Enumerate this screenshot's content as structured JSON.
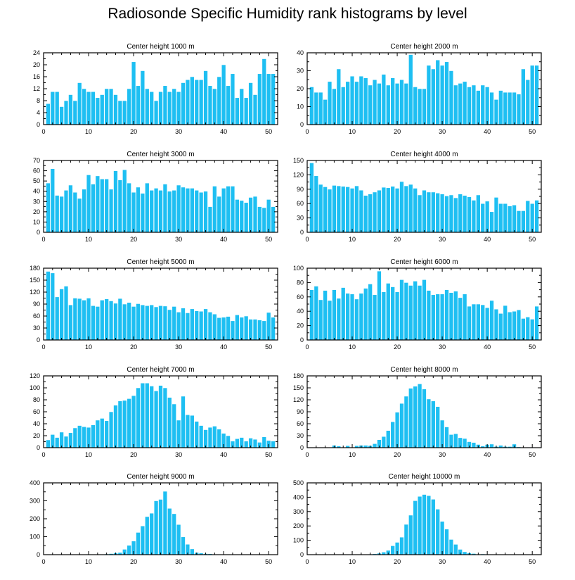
{
  "title": "Radiosonde Specific Humidity rank histograms by level",
  "colors": {
    "bar": "#1ebff2",
    "frame": "#000000"
  },
  "chart_data": [
    {
      "type": "bar",
      "title": "Center height 1000 m",
      "xlabel": "",
      "ylabel": "",
      "xlim": [
        0,
        52
      ],
      "xticks": [
        0,
        10,
        20,
        30,
        40,
        50
      ],
      "ylim": [
        0,
        24
      ],
      "yticks": [
        0,
        4,
        8,
        12,
        16,
        20,
        24
      ],
      "x": [
        1,
        2,
        3,
        4,
        5,
        6,
        7,
        8,
        9,
        10,
        11,
        12,
        13,
        14,
        15,
        16,
        17,
        18,
        19,
        20,
        21,
        22,
        23,
        24,
        25,
        26,
        27,
        28,
        29,
        30,
        31,
        32,
        33,
        34,
        35,
        36,
        37,
        38,
        39,
        40,
        41,
        42,
        43,
        44,
        45,
        46,
        47,
        48,
        49,
        50,
        51
      ],
      "values": [
        7,
        11,
        11,
        6,
        8,
        10,
        8,
        14,
        12,
        11,
        11,
        9,
        10,
        12,
        12,
        10,
        8,
        8,
        12,
        21,
        13,
        18,
        12,
        11,
        8,
        11,
        13,
        11,
        12,
        11,
        14,
        15,
        16,
        15,
        15,
        18,
        13,
        12,
        16,
        20,
        13,
        17,
        9,
        12,
        9,
        14,
        10,
        17,
        22,
        17,
        17
      ]
    },
    {
      "type": "bar",
      "title": "Center height 2000 m",
      "xlabel": "",
      "ylabel": "",
      "xlim": [
        0,
        52
      ],
      "xticks": [
        0,
        10,
        20,
        30,
        40,
        50
      ],
      "ylim": [
        0,
        40
      ],
      "yticks": [
        0,
        10,
        20,
        30,
        40
      ],
      "x": [
        1,
        2,
        3,
        4,
        5,
        6,
        7,
        8,
        9,
        10,
        11,
        12,
        13,
        14,
        15,
        16,
        17,
        18,
        19,
        20,
        21,
        22,
        23,
        24,
        25,
        26,
        27,
        28,
        29,
        30,
        31,
        32,
        33,
        34,
        35,
        36,
        37,
        38,
        39,
        40,
        41,
        42,
        43,
        44,
        45,
        46,
        47,
        48,
        49,
        50,
        51
      ],
      "values": [
        21,
        18,
        18,
        14,
        24,
        20,
        31,
        21,
        24,
        27,
        24,
        27,
        26,
        22,
        25,
        23,
        28,
        22,
        26,
        23,
        25,
        23,
        39,
        21,
        20,
        20,
        33,
        31,
        36,
        33,
        35,
        30,
        22,
        23,
        24,
        21,
        22,
        19,
        22,
        21,
        18,
        14,
        19,
        18,
        18,
        18,
        17,
        31,
        25,
        33,
        33
      ]
    },
    {
      "type": "bar",
      "title": "Center height 3000 m",
      "xlabel": "",
      "ylabel": "",
      "xlim": [
        0,
        52
      ],
      "xticks": [
        0,
        10,
        20,
        30,
        40,
        50
      ],
      "ylim": [
        0,
        70
      ],
      "yticks": [
        0,
        10,
        20,
        30,
        40,
        50,
        60,
        70
      ],
      "x": [
        1,
        2,
        3,
        4,
        5,
        6,
        7,
        8,
        9,
        10,
        11,
        12,
        13,
        14,
        15,
        16,
        17,
        18,
        19,
        20,
        21,
        22,
        23,
        24,
        25,
        26,
        27,
        28,
        29,
        30,
        31,
        32,
        33,
        34,
        35,
        36,
        37,
        38,
        39,
        40,
        41,
        42,
        43,
        44,
        45,
        46,
        47,
        48,
        49,
        50,
        51
      ],
      "values": [
        48,
        62,
        36,
        35,
        41,
        46,
        39,
        33,
        42,
        56,
        47,
        55,
        52,
        52,
        42,
        60,
        51,
        61,
        48,
        39,
        44,
        38,
        48,
        41,
        43,
        41,
        47,
        40,
        41,
        46,
        44,
        43,
        43,
        41,
        39,
        40,
        25,
        45,
        35,
        43,
        45,
        45,
        32,
        31,
        29,
        34,
        35,
        25,
        24,
        32,
        25
      ]
    },
    {
      "type": "bar",
      "title": "Center height 4000 m",
      "xlabel": "",
      "ylabel": "",
      "xlim": [
        0,
        52
      ],
      "xticks": [
        0,
        10,
        20,
        30,
        40,
        50
      ],
      "ylim": [
        0,
        150
      ],
      "yticks": [
        0,
        30,
        60,
        90,
        120,
        150
      ],
      "x": [
        1,
        2,
        3,
        4,
        5,
        6,
        7,
        8,
        9,
        10,
        11,
        12,
        13,
        14,
        15,
        16,
        17,
        18,
        19,
        20,
        21,
        22,
        23,
        24,
        25,
        26,
        27,
        28,
        29,
        30,
        31,
        32,
        33,
        34,
        35,
        36,
        37,
        38,
        39,
        40,
        41,
        42,
        43,
        44,
        45,
        46,
        47,
        48,
        49,
        50,
        51
      ],
      "values": [
        145,
        118,
        100,
        95,
        90,
        98,
        97,
        96,
        95,
        92,
        97,
        88,
        77,
        80,
        84,
        88,
        94,
        93,
        96,
        92,
        106,
        97,
        100,
        92,
        78,
        88,
        84,
        84,
        82,
        80,
        76,
        78,
        72,
        80,
        77,
        74,
        67,
        78,
        60,
        65,
        43,
        73,
        60,
        60,
        55,
        57,
        45,
        45,
        66,
        60,
        67
      ]
    },
    {
      "type": "bar",
      "title": "Center height 5000 m",
      "xlabel": "",
      "ylabel": "",
      "xlim": [
        0,
        52
      ],
      "xticks": [
        0,
        10,
        20,
        30,
        40,
        50
      ],
      "ylim": [
        0,
        180
      ],
      "yticks": [
        0,
        30,
        60,
        90,
        120,
        150,
        180
      ],
      "x": [
        1,
        2,
        3,
        4,
        5,
        6,
        7,
        8,
        9,
        10,
        11,
        12,
        13,
        14,
        15,
        16,
        17,
        18,
        19,
        20,
        21,
        22,
        23,
        24,
        25,
        26,
        27,
        28,
        29,
        30,
        31,
        32,
        33,
        34,
        35,
        36,
        37,
        38,
        39,
        40,
        41,
        42,
        43,
        44,
        45,
        46,
        47,
        48,
        49,
        50,
        51
      ],
      "values": [
        172,
        168,
        108,
        128,
        135,
        88,
        105,
        104,
        100,
        105,
        86,
        84,
        100,
        103,
        98,
        92,
        104,
        90,
        94,
        84,
        91,
        88,
        86,
        88,
        83,
        86,
        85,
        76,
        84,
        70,
        80,
        68,
        78,
        73,
        72,
        78,
        70,
        65,
        56,
        57,
        59,
        48,
        63,
        57,
        60,
        52,
        52,
        50,
        48,
        69,
        57
      ]
    },
    {
      "type": "bar",
      "title": "Center height 6000 m",
      "xlabel": "",
      "ylabel": "",
      "xlim": [
        0,
        52
      ],
      "xticks": [
        0,
        10,
        20,
        30,
        40,
        50
      ],
      "ylim": [
        0,
        100
      ],
      "yticks": [
        0,
        20,
        40,
        60,
        80,
        100
      ],
      "x": [
        1,
        2,
        3,
        4,
        5,
        6,
        7,
        8,
        9,
        10,
        11,
        12,
        13,
        14,
        15,
        16,
        17,
        18,
        19,
        20,
        21,
        22,
        23,
        24,
        25,
        26,
        27,
        28,
        29,
        30,
        31,
        32,
        33,
        34,
        35,
        36,
        37,
        38,
        39,
        40,
        41,
        42,
        43,
        44,
        45,
        46,
        47,
        48,
        49,
        50,
        51
      ],
      "values": [
        70,
        75,
        56,
        69,
        55,
        70,
        58,
        73,
        65,
        64,
        57,
        65,
        72,
        78,
        63,
        96,
        67,
        79,
        74,
        67,
        84,
        80,
        76,
        82,
        76,
        84,
        69,
        63,
        64,
        64,
        70,
        66,
        68,
        59,
        64,
        47,
        50,
        50,
        49,
        45,
        55,
        43,
        37,
        48,
        39,
        40,
        42,
        30,
        32,
        29,
        47
      ]
    },
    {
      "type": "bar",
      "title": "Center height 7000 m",
      "xlabel": "",
      "ylabel": "",
      "xlim": [
        0,
        52
      ],
      "xticks": [
        0,
        10,
        20,
        30,
        40,
        50
      ],
      "ylim": [
        0,
        120
      ],
      "yticks": [
        0,
        20,
        40,
        60,
        80,
        100,
        120
      ],
      "x": [
        1,
        2,
        3,
        4,
        5,
        6,
        7,
        8,
        9,
        10,
        11,
        12,
        13,
        14,
        15,
        16,
        17,
        18,
        19,
        20,
        21,
        22,
        23,
        24,
        25,
        26,
        27,
        28,
        29,
        30,
        31,
        32,
        33,
        34,
        35,
        36,
        37,
        38,
        39,
        40,
        41,
        42,
        43,
        44,
        45,
        46,
        47,
        48,
        49,
        50,
        51
      ],
      "values": [
        13,
        22,
        17,
        26,
        19,
        25,
        33,
        37,
        35,
        34,
        38,
        46,
        49,
        45,
        60,
        71,
        78,
        79,
        82,
        87,
        100,
        108,
        108,
        103,
        95,
        104,
        100,
        84,
        73,
        46,
        86,
        55,
        54,
        44,
        37,
        30,
        34,
        36,
        31,
        24,
        20,
        11,
        15,
        17,
        11,
        16,
        14,
        9,
        18,
        12,
        11
      ]
    },
    {
      "type": "bar",
      "title": "Center height 8000 m",
      "xlabel": "",
      "ylabel": "",
      "xlim": [
        0,
        52
      ],
      "xticks": [
        0,
        10,
        20,
        30,
        40,
        50
      ],
      "ylim": [
        0,
        180
      ],
      "yticks": [
        0,
        30,
        60,
        90,
        120,
        150,
        180
      ],
      "x": [
        1,
        2,
        3,
        4,
        5,
        6,
        7,
        8,
        9,
        10,
        11,
        12,
        13,
        14,
        15,
        16,
        17,
        18,
        19,
        20,
        21,
        22,
        23,
        24,
        25,
        26,
        27,
        28,
        29,
        30,
        31,
        32,
        33,
        34,
        35,
        36,
        37,
        38,
        39,
        40,
        41,
        42,
        43,
        44,
        45,
        46,
        47,
        48,
        49,
        50,
        51
      ],
      "values": [
        0,
        0,
        0,
        0,
        0,
        6,
        4,
        0,
        5,
        0,
        5,
        6,
        6,
        5,
        10,
        20,
        28,
        43,
        65,
        89,
        111,
        129,
        149,
        154,
        160,
        147,
        122,
        117,
        103,
        69,
        52,
        33,
        35,
        25,
        23,
        15,
        13,
        8,
        4,
        8,
        9,
        3,
        6,
        3,
        3,
        9,
        2,
        0,
        1,
        1,
        0
      ]
    },
    {
      "type": "bar",
      "title": "Center height 9000 m",
      "xlabel": "",
      "ylabel": "",
      "xlim": [
        0,
        52
      ],
      "xticks": [
        0,
        10,
        20,
        30,
        40,
        50
      ],
      "ylim": [
        0,
        400
      ],
      "yticks": [
        0,
        100,
        200,
        300,
        400
      ],
      "x": [
        1,
        2,
        3,
        4,
        5,
        6,
        7,
        8,
        9,
        10,
        11,
        12,
        13,
        14,
        15,
        16,
        17,
        18,
        19,
        20,
        21,
        22,
        23,
        24,
        25,
        26,
        27,
        28,
        29,
        30,
        31,
        32,
        33,
        34,
        35,
        36,
        37,
        38,
        39,
        40,
        41,
        42,
        43,
        44,
        45,
        46,
        47,
        48,
        49,
        50,
        51
      ],
      "values": [
        1,
        1,
        1,
        1,
        1,
        1,
        1,
        1,
        1,
        2,
        2,
        2,
        3,
        4,
        6,
        10,
        12,
        30,
        52,
        76,
        124,
        160,
        212,
        231,
        300,
        308,
        353,
        258,
        228,
        168,
        99,
        58,
        32,
        12,
        9,
        6,
        5,
        2,
        2,
        1,
        1,
        1,
        1,
        0,
        0,
        0,
        0,
        0,
        0,
        0,
        0
      ]
    },
    {
      "type": "bar",
      "title": "Center height 10000 m",
      "xlabel": "",
      "ylabel": "",
      "xlim": [
        0,
        52
      ],
      "xticks": [
        0,
        10,
        20,
        30,
        40,
        50
      ],
      "ylim": [
        0,
        500
      ],
      "yticks": [
        0,
        100,
        200,
        300,
        400,
        500
      ],
      "x": [
        1,
        2,
        3,
        4,
        5,
        6,
        7,
        8,
        9,
        10,
        11,
        12,
        13,
        14,
        15,
        16,
        17,
        18,
        19,
        20,
        21,
        22,
        23,
        24,
        25,
        26,
        27,
        28,
        29,
        30,
        31,
        32,
        33,
        34,
        35,
        36,
        37,
        38,
        39,
        40,
        41,
        42,
        43,
        44,
        45,
        46,
        47,
        48,
        49,
        50,
        51
      ],
      "values": [
        0,
        0,
        0,
        0,
        0,
        0,
        0,
        0,
        0,
        0,
        1,
        1,
        2,
        3,
        6,
        10,
        18,
        30,
        62,
        86,
        122,
        211,
        275,
        376,
        406,
        419,
        411,
        386,
        317,
        232,
        178,
        106,
        72,
        37,
        20,
        12,
        8,
        4,
        5,
        3,
        2,
        2,
        1,
        1,
        1,
        0,
        0,
        0,
        0,
        0,
        0
      ]
    }
  ]
}
